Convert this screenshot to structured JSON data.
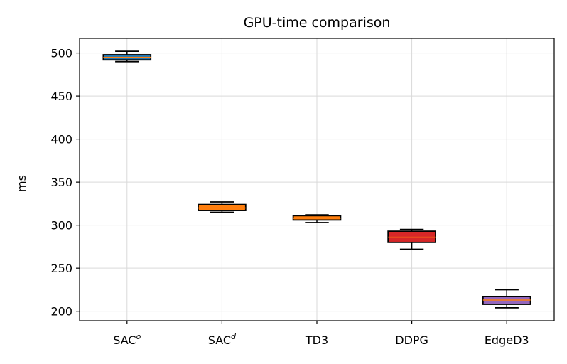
{
  "chart_data": {
    "type": "box",
    "title": "GPU-time comparison",
    "xlabel": "",
    "ylabel": "ms",
    "ylim": [
      189,
      517
    ],
    "yticks": [
      200,
      250,
      300,
      350,
      400,
      450,
      500
    ],
    "grid": true,
    "categories": [
      {
        "base": "SAC",
        "sup": "o"
      },
      {
        "base": "SAC",
        "sup": "d"
      },
      {
        "base": "TD3",
        "sup": ""
      },
      {
        "base": "DDPG",
        "sup": ""
      },
      {
        "base": "EdgeD3",
        "sup": ""
      }
    ],
    "boxes": [
      {
        "whisker_low": 490,
        "q1": 492,
        "median": 495,
        "q3": 498,
        "whisker_high": 502,
        "fill": "#1f77b4",
        "median_color": "#ff7f0e"
      },
      {
        "whisker_low": 315,
        "q1": 317,
        "median": 320,
        "q3": 324,
        "whisker_high": 327,
        "fill": "#ff7f0e",
        "median_color": "#ff7f0e"
      },
      {
        "whisker_low": 303,
        "q1": 306,
        "median": 308,
        "q3": 311,
        "whisker_high": 312,
        "fill": "#ff7f0e",
        "median_color": "#ff7f0e"
      },
      {
        "whisker_low": 272,
        "q1": 280,
        "median": 286,
        "q3": 293,
        "whisker_high": 295,
        "fill": "#d62728",
        "median_color": "#ff7f0e"
      },
      {
        "whisker_low": 204,
        "q1": 208,
        "median": 213,
        "q3": 217,
        "whisker_high": 225,
        "fill": "#9467bd",
        "median_color": "#ff7f0e"
      }
    ]
  }
}
